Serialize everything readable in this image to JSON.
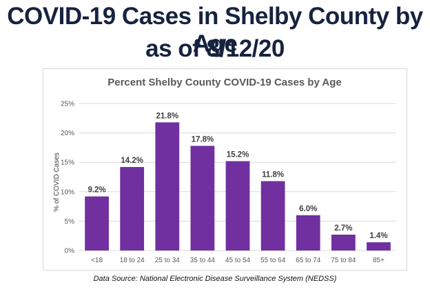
{
  "slide": {
    "headline_line1": "COVID-19 Cases in Shelby County by Age",
    "headline_line2": "as of 8/12/20",
    "source": "Data Source: National Electronic Disease Surveillance System (NEDSS)"
  },
  "colors": {
    "bar": "#7030a0",
    "headline": "#16233f",
    "grid": "#d9d9d9"
  },
  "chart_data": {
    "type": "bar",
    "title": "Percent Shelby County COVID-19 Cases by Age",
    "xlabel": "",
    "ylabel": "% of COVID Cases",
    "ylim": [
      0,
      25
    ],
    "yticks": [
      0,
      5,
      10,
      15,
      20,
      25
    ],
    "ytick_labels": [
      "0%",
      "5%",
      "10%",
      "15%",
      "20%",
      "25%"
    ],
    "categories": [
      "<18",
      "18 to 24",
      "25 to 34",
      "35 to 44",
      "45 to 54",
      "55 to 64",
      "65 to 74",
      "75 to 84",
      "85+"
    ],
    "values": [
      9.2,
      14.2,
      21.8,
      17.8,
      15.2,
      11.8,
      6.0,
      2.7,
      1.4
    ],
    "data_labels": [
      "9.2%",
      "14.2%",
      "21.8%",
      "17.8%",
      "15.2%",
      "11.8%",
      "6.0%",
      "2.7%",
      "1.4%"
    ],
    "grid": true,
    "legend": "none"
  }
}
